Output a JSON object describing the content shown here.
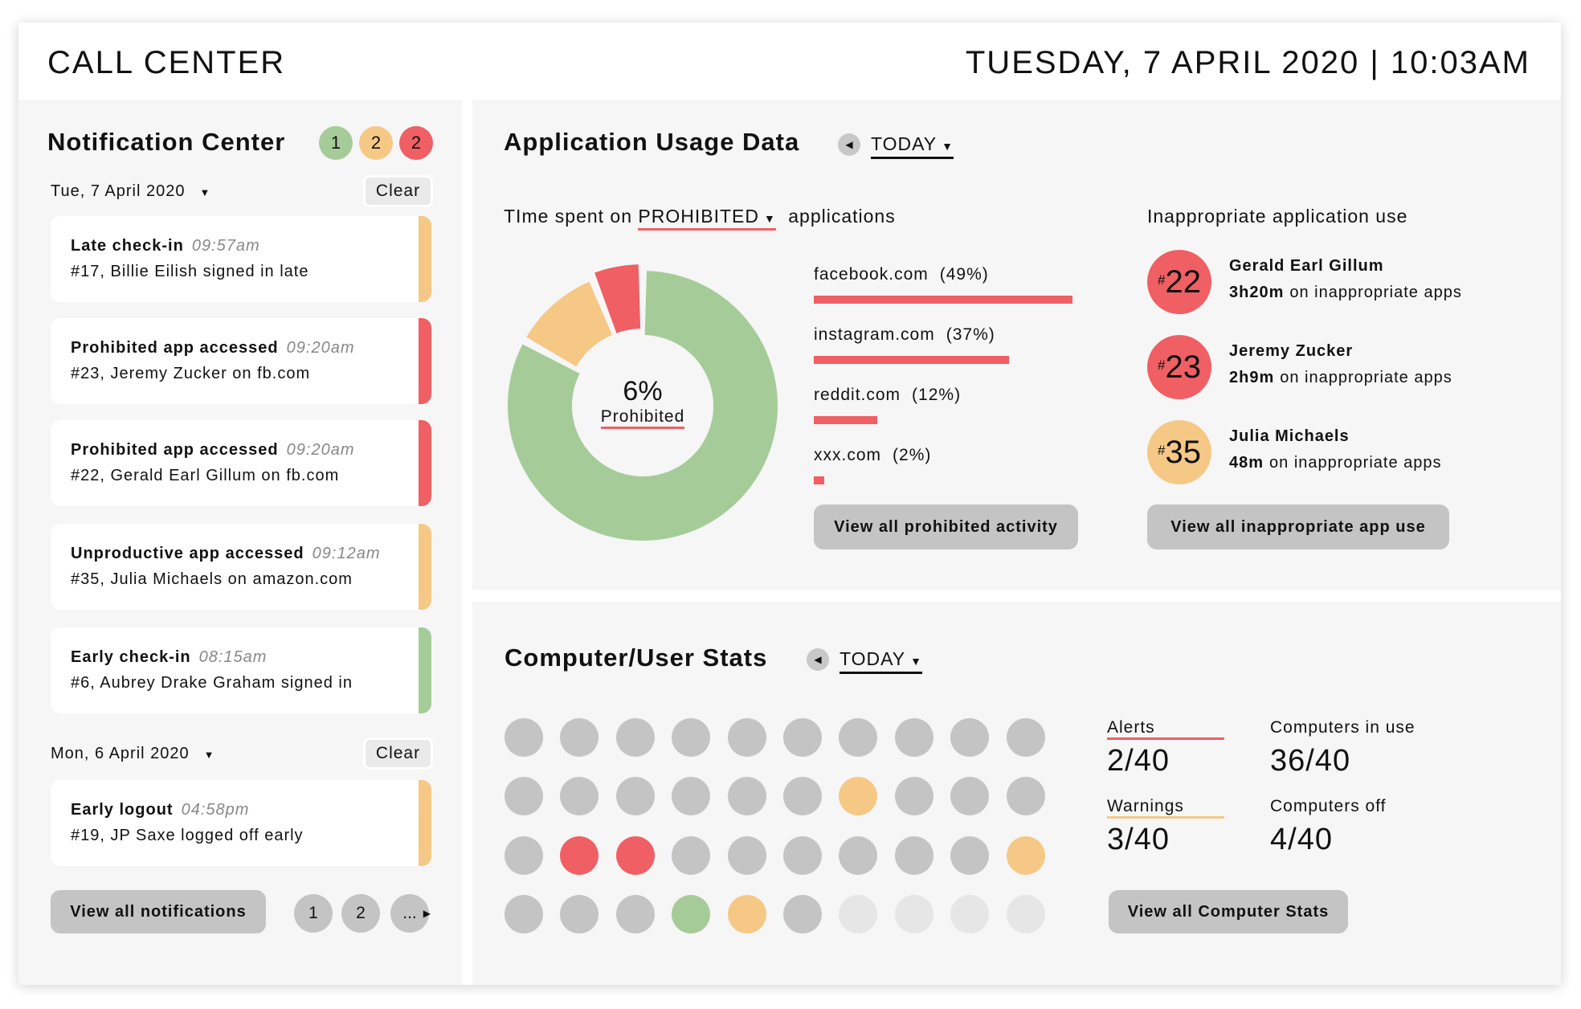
{
  "colors": {
    "green": "#a5cc98",
    "orange": "#f6c886",
    "red": "#ef5f64",
    "gray": "#c4c4c4",
    "light": "#e6e6e6"
  },
  "header": {
    "title": "CALL CENTER",
    "datetime": "TUESDAY, 7 APRIL 2020 | 10:03AM"
  },
  "notifications": {
    "title": "Notification Center",
    "badges": [
      {
        "count": "1",
        "color": "green"
      },
      {
        "count": "2",
        "color": "orange"
      },
      {
        "count": "2",
        "color": "red"
      }
    ],
    "groups": [
      {
        "date": "Tue, 7 April 2020",
        "clear": "Clear",
        "items": [
          {
            "title": "Late check-in",
            "time": "09:57am",
            "text": "#17, Billie Eilish signed in late",
            "color": "orange"
          },
          {
            "title": "Prohibited app accessed",
            "time": "09:20am",
            "text": "#23, Jeremy Zucker on fb.com",
            "color": "red"
          },
          {
            "title": "Prohibited app accessed",
            "time": "09:20am",
            "text": "#22, Gerald Earl Gillum on fb.com",
            "color": "red"
          },
          {
            "title": "Unproductive app accessed",
            "time": "09:12am",
            "text": "#35, Julia Michaels on amazon.com",
            "color": "orange"
          },
          {
            "title": "Early check-in",
            "time": "08:15am",
            "text": "#6, Aubrey Drake Graham signed in",
            "color": "green"
          }
        ]
      },
      {
        "date": "Mon, 6 April 2020",
        "clear": "Clear",
        "items": [
          {
            "title": "Early logout",
            "time": "04:58pm",
            "text": "#19, JP Saxe logged off early",
            "color": "orange"
          }
        ]
      }
    ],
    "view_all": "View all notifications",
    "pages": [
      "1",
      "2",
      "..."
    ]
  },
  "app_usage": {
    "title": "Application Usage Data",
    "period": "TODAY",
    "subtitle_pre": "TIme spent on",
    "category": "PROHIBITED",
    "subtitle_post": "applications",
    "donut_center_value": "6%",
    "donut_center_label": "Prohibited",
    "chart_data": {
      "type": "pie",
      "slices": [
        {
          "value": 83,
          "color": "green"
        },
        {
          "value": 11,
          "color": "orange"
        },
        {
          "value": 6,
          "color": "red"
        }
      ]
    },
    "sites": [
      {
        "label": "facebook.com",
        "pct": "(49%)",
        "value": 49
      },
      {
        "label": "instagram.com",
        "pct": "(37%)",
        "value": 37
      },
      {
        "label": "reddit.com",
        "pct": "(12%)",
        "value": 12
      },
      {
        "label": "xxx.com",
        "pct": "(2%)",
        "value": 2
      }
    ],
    "view_prohibited": "View all prohibited activity",
    "inappropriate_title": "Inappropriate application use",
    "users": [
      {
        "id": "22",
        "name": "Gerald Earl Gillum",
        "time": "3h20m",
        "suffix": "on inappropriate apps",
        "color": "red"
      },
      {
        "id": "23",
        "name": "Jeremy Zucker",
        "time": "2h9m",
        "suffix": "on inappropriate apps",
        "color": "red"
      },
      {
        "id": "35",
        "name": "Julia Michaels",
        "time": "48m",
        "suffix": "on inappropriate apps",
        "color": "orange"
      }
    ],
    "view_inappropriate": "View all inappropriate app use"
  },
  "computer_stats": {
    "title": "Computer/User Stats",
    "period": "TODAY",
    "grid": [
      [
        "gray",
        "gray",
        "gray",
        "gray",
        "gray",
        "gray",
        "gray",
        "gray",
        "gray",
        "gray"
      ],
      [
        "gray",
        "gray",
        "gray",
        "gray",
        "gray",
        "gray",
        "orange",
        "gray",
        "gray",
        "gray"
      ],
      [
        "gray",
        "red",
        "red",
        "gray",
        "gray",
        "gray",
        "gray",
        "gray",
        "gray",
        "orange"
      ],
      [
        "gray",
        "gray",
        "gray",
        "green",
        "orange",
        "gray",
        "light",
        "light",
        "light",
        "light"
      ]
    ],
    "alerts_label": "Alerts",
    "alerts_value": "2/40",
    "in_use_label": "Computers in use",
    "in_use_value": "36/40",
    "warnings_label": "Warnings",
    "warnings_value": "3/40",
    "off_label": "Computers off",
    "off_value": "4/40",
    "view_all": "View all Computer Stats"
  }
}
